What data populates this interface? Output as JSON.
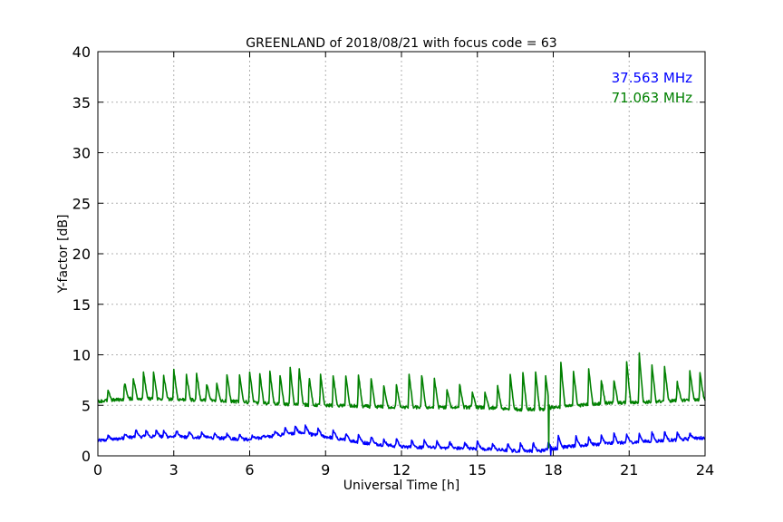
{
  "chart_data": {
    "type": "line",
    "title": "GREENLAND of 2018/08/21 with focus code = 63",
    "xlabel": "Universal Time [h]",
    "ylabel": "Y-factor [dB]",
    "xlim": [
      0,
      24
    ],
    "ylim": [
      0,
      40
    ],
    "xticks": [
      0,
      3,
      6,
      9,
      12,
      15,
      18,
      21,
      24
    ],
    "yticks": [
      0,
      5,
      10,
      15,
      20,
      25,
      30,
      35,
      40
    ],
    "grid": true,
    "legend_position": "top-right",
    "series": [
      {
        "name": "37.563 MHz",
        "color": "#0000ff",
        "baseline_x": [
          0,
          0.5,
          1.5,
          3,
          4.5,
          6,
          7,
          8,
          9,
          10.5,
          12,
          13.5,
          15,
          16.5,
          17.5,
          18.5,
          20,
          21.5,
          23,
          24
        ],
        "baseline_y": [
          1.5,
          1.6,
          1.9,
          1.9,
          1.8,
          1.6,
          2.0,
          2.3,
          1.9,
          1.3,
          0.9,
          0.8,
          0.7,
          0.5,
          0.5,
          0.9,
          1.2,
          1.4,
          1.6,
          1.8
        ],
        "peak_x": [
          0.4,
          1.05,
          1.5,
          1.9,
          2.3,
          2.6,
          3.1,
          3.6,
          4.1,
          4.6,
          5.1,
          5.6,
          6.1,
          6.5,
          7.0,
          7.4,
          7.8,
          8.2,
          8.7,
          9.3,
          9.8,
          10.3,
          10.8,
          11.3,
          11.8,
          12.4,
          12.9,
          13.4,
          13.9,
          14.5,
          15.0,
          15.6,
          16.2,
          16.7,
          17.2,
          17.8,
          18.2,
          18.9,
          19.4,
          19.9,
          20.4,
          20.9,
          21.4,
          21.9,
          22.4,
          22.9,
          23.4
        ],
        "peak_y": [
          2.0,
          2.2,
          2.6,
          2.5,
          2.6,
          2.5,
          2.5,
          2.4,
          2.3,
          2.2,
          2.2,
          2.1,
          2.0,
          2.0,
          2.5,
          2.8,
          2.9,
          3.0,
          2.7,
          2.5,
          2.2,
          2.1,
          1.9,
          1.6,
          1.7,
          1.5,
          1.5,
          1.4,
          1.4,
          1.3,
          1.4,
          1.2,
          1.2,
          1.2,
          1.3,
          1.4,
          2.0,
          1.9,
          1.8,
          2.0,
          2.2,
          2.1,
          2.2,
          2.3,
          2.4,
          2.3,
          2.2
        ]
      },
      {
        "name": "71.063 MHz",
        "color": "#008000",
        "baseline_x": [
          0,
          0.5,
          1.5,
          3,
          4.5,
          6,
          7.5,
          9,
          10.5,
          12,
          13.5,
          15,
          16.5,
          17.6,
          18,
          19,
          20,
          21.5,
          23,
          24
        ],
        "baseline_y": [
          5.4,
          5.5,
          5.7,
          5.6,
          5.5,
          5.3,
          5.1,
          5.0,
          4.9,
          4.8,
          4.8,
          4.8,
          4.6,
          4.6,
          4.8,
          5.0,
          5.2,
          5.3,
          5.5,
          5.6
        ],
        "peak_x": [
          0.4,
          1.05,
          1.4,
          1.8,
          2.2,
          2.6,
          3.0,
          3.5,
          3.9,
          4.3,
          4.7,
          5.1,
          5.6,
          6.0,
          6.4,
          6.8,
          7.2,
          7.6,
          7.95,
          8.35,
          8.8,
          9.3,
          9.8,
          10.3,
          10.8,
          11.3,
          11.8,
          12.3,
          12.8,
          13.3,
          13.8,
          14.3,
          14.8,
          15.3,
          15.8,
          16.3,
          16.8,
          17.3,
          17.7,
          18.3,
          18.8,
          19.4,
          19.9,
          20.4,
          20.9,
          21.4,
          21.9,
          22.4,
          22.9,
          23.4,
          23.8
        ],
        "peak_y": [
          6.4,
          7.3,
          7.7,
          8.3,
          8.2,
          7.9,
          8.5,
          8.0,
          8.2,
          7.1,
          7.2,
          8.1,
          8.0,
          8.3,
          8.1,
          8.3,
          8.0,
          8.7,
          8.9,
          7.9,
          8.0,
          8.0,
          7.9,
          8.0,
          7.6,
          7.0,
          7.0,
          8.1,
          8.0,
          7.7,
          6.5,
          7.1,
          6.3,
          6.2,
          6.9,
          8.0,
          8.3,
          8.3,
          7.9,
          9.2,
          8.4,
          8.7,
          7.5,
          7.5,
          9.3,
          10.1,
          8.9,
          8.8,
          7.3,
          8.4,
          8.2
        ]
      }
    ]
  }
}
